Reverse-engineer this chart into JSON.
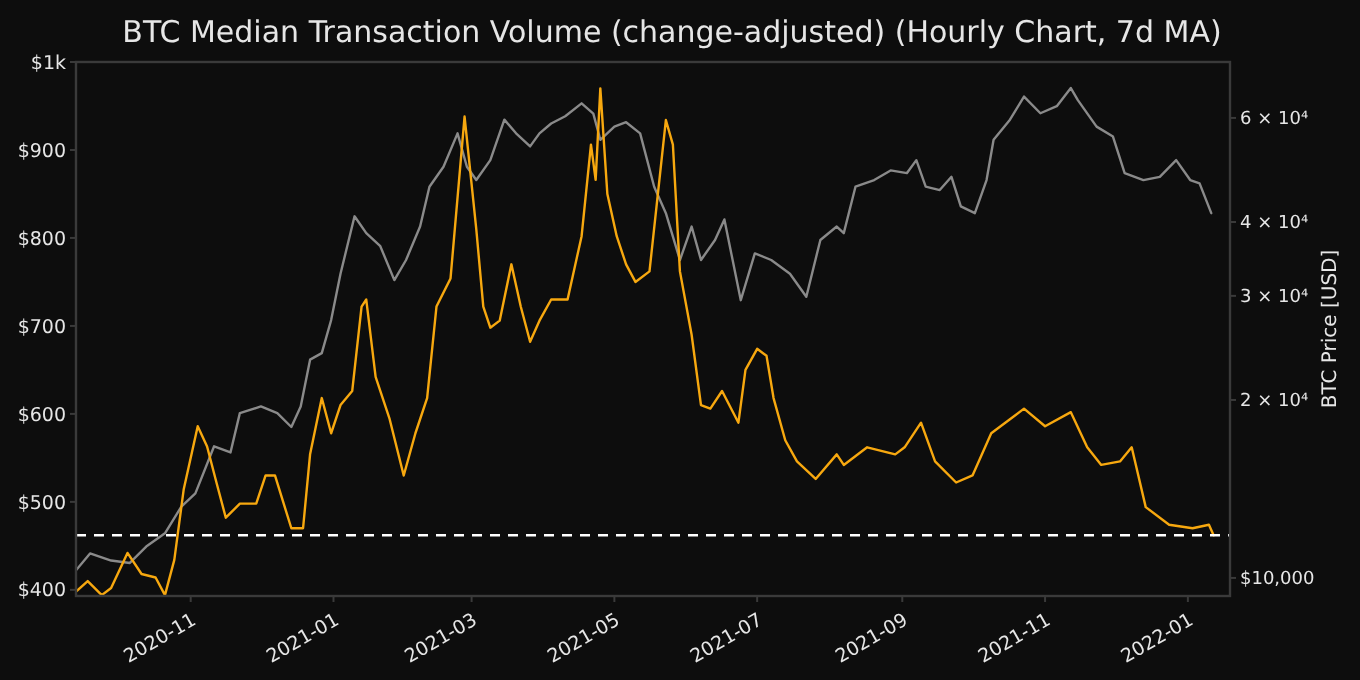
{
  "chart_data": {
    "type": "line",
    "title": "BTC Median Transaction Volume (change-adjusted) (Hourly Chart, 7d MA)",
    "y2label": "BTC Price [USD]",
    "xlim": [
      "2020-09-13",
      "2022-01-19"
    ],
    "xticks": [
      {
        "value": "2020-11-01",
        "label": "2020-11"
      },
      {
        "value": "2021-01-01",
        "label": "2021-01"
      },
      {
        "value": "2021-03-01",
        "label": "2021-03"
      },
      {
        "value": "2021-05-01",
        "label": "2021-05"
      },
      {
        "value": "2021-07-01",
        "label": "2021-07"
      },
      {
        "value": "2021-09-01",
        "label": "2021-09"
      },
      {
        "value": "2021-11-01",
        "label": "2021-11"
      },
      {
        "value": "2022-01-01",
        "label": "2022-01"
      }
    ],
    "ylim": [
      393,
      1000
    ],
    "yticks": [
      {
        "value": 400,
        "label": "$400"
      },
      {
        "value": 500,
        "label": "$500"
      },
      {
        "value": 600,
        "label": "$600"
      },
      {
        "value": 700,
        "label": "$700"
      },
      {
        "value": 800,
        "label": "$800"
      },
      {
        "value": 900,
        "label": "$900"
      },
      {
        "value": 1000,
        "label": "$1k"
      }
    ],
    "y2lim": [
      9320,
      74600
    ],
    "log": "y2",
    "y2ticks": [
      {
        "value": 10000,
        "label": "$10,000"
      },
      {
        "value": 20000,
        "label": "2 × 10⁴"
      },
      {
        "value": 30000,
        "label": "3 × 10⁴"
      },
      {
        "value": 40000,
        "label": "4 × 10⁴"
      },
      {
        "value": 60000,
        "label": "6 × 10⁴"
      }
    ],
    "grid": false,
    "line_style": "solid",
    "ref_lines": [
      {
        "axis": "y",
        "value": 462,
        "color": "#ffffff",
        "line_style": "dashed"
      }
    ],
    "series": [
      {
        "axis": "y2",
        "color": "#8a8a8a",
        "x": [
          "2020-09-13",
          "2020-09-19",
          "2020-09-28",
          "2020-10-06",
          "2020-10-13",
          "2020-10-21",
          "2020-10-28",
          "2020-11-03",
          "2020-11-11",
          "2020-11-18",
          "2020-11-22",
          "2020-12-01",
          "2020-12-08",
          "2020-12-14",
          "2020-12-18",
          "2020-12-22",
          "2020-12-27",
          "2020-12-31",
          "2021-01-04",
          "2021-01-10",
          "2021-01-15",
          "2021-01-21",
          "2021-01-27",
          "2021-02-01",
          "2021-02-07",
          "2021-02-11",
          "2021-02-17",
          "2021-02-23",
          "2021-02-27",
          "2021-03-03",
          "2021-03-09",
          "2021-03-15",
          "2021-03-20",
          "2021-03-26",
          "2021-03-30",
          "2021-04-04",
          "2021-04-10",
          "2021-04-17",
          "2021-04-22",
          "2021-04-25",
          "2021-05-01",
          "2021-05-06",
          "2021-05-12",
          "2021-05-18",
          "2021-05-23",
          "2021-05-29",
          "2021-06-03",
          "2021-06-07",
          "2021-06-13",
          "2021-06-17",
          "2021-06-24",
          "2021-06-30",
          "2021-07-07",
          "2021-07-15",
          "2021-07-22",
          "2021-07-28",
          "2021-08-04",
          "2021-08-07",
          "2021-08-12",
          "2021-08-20",
          "2021-08-27",
          "2021-09-03",
          "2021-09-07",
          "2021-09-11",
          "2021-09-17",
          "2021-09-22",
          "2021-09-26",
          "2021-10-02",
          "2021-10-07",
          "2021-10-10",
          "2021-10-17",
          "2021-10-23",
          "2021-10-30",
          "2021-11-06",
          "2021-11-12",
          "2021-11-15",
          "2021-11-23",
          "2021-11-30",
          "2021-12-05",
          "2021-12-13",
          "2021-12-20",
          "2021-12-27",
          "2022-01-02",
          "2022-01-06",
          "2022-01-11"
        ],
        "values": [
          10300,
          11000,
          10700,
          10600,
          11300,
          11900,
          13200,
          13900,
          16700,
          16300,
          19000,
          19500,
          19000,
          18000,
          19500,
          23400,
          24000,
          27300,
          32700,
          40900,
          38300,
          36400,
          31900,
          34500,
          39300,
          45900,
          49600,
          56500,
          49600,
          47100,
          50900,
          59600,
          56500,
          53700,
          56500,
          58700,
          60400,
          63500,
          61000,
          55100,
          58000,
          59000,
          56500,
          45900,
          41400,
          34500,
          39300,
          34500,
          37300,
          40400,
          29500,
          35400,
          34500,
          32700,
          29900,
          37300,
          39300,
          38300,
          45900,
          47100,
          48900,
          48400,
          50900,
          45900,
          45300,
          47700,
          42500,
          41400,
          47100,
          55100,
          59600,
          65200,
          61100,
          62800,
          67400,
          64300,
          58000,
          55800,
          48400,
          47100,
          47700,
          50900,
          47100,
          46500,
          41400
        ]
      },
      {
        "color": "#f7a80f",
        "x": [
          "2020-09-13",
          "2020-09-18",
          "2020-09-24",
          "2020-09-28",
          "2020-10-05",
          "2020-10-11",
          "2020-10-17",
          "2020-10-21",
          "2020-10-25",
          "2020-10-29",
          "2020-11-04",
          "2020-11-08",
          "2020-11-12",
          "2020-11-16",
          "2020-11-22",
          "2020-11-29",
          "2020-12-03",
          "2020-12-07",
          "2020-12-14",
          "2020-12-19",
          "2020-12-22",
          "2020-12-27",
          "2020-12-31",
          "2021-01-04",
          "2021-01-09",
          "2021-01-13",
          "2021-01-15",
          "2021-01-19",
          "2021-01-25",
          "2021-01-31",
          "2021-02-05",
          "2021-02-10",
          "2021-02-14",
          "2021-02-20",
          "2021-02-26",
          "2021-03-03",
          "2021-03-06",
          "2021-03-09",
          "2021-03-13",
          "2021-03-18",
          "2021-03-22",
          "2021-03-26",
          "2021-03-30",
          "2021-04-04",
          "2021-04-11",
          "2021-04-17",
          "2021-04-21",
          "2021-04-23",
          "2021-04-25",
          "2021-04-28",
          "2021-05-02",
          "2021-05-06",
          "2021-05-10",
          "2021-05-16",
          "2021-05-23",
          "2021-05-26",
          "2021-05-29",
          "2021-06-03",
          "2021-06-07",
          "2021-06-11",
          "2021-06-16",
          "2021-06-23",
          "2021-06-26",
          "2021-07-01",
          "2021-07-05",
          "2021-07-08",
          "2021-07-13",
          "2021-07-18",
          "2021-07-26",
          "2021-08-04",
          "2021-08-07",
          "2021-08-17",
          "2021-08-29",
          "2021-09-02",
          "2021-09-09",
          "2021-09-15",
          "2021-09-24",
          "2021-10-01",
          "2021-10-09",
          "2021-10-17",
          "2021-10-23",
          "2021-11-01",
          "2021-11-12",
          "2021-11-19",
          "2021-11-25",
          "2021-12-03",
          "2021-12-08",
          "2021-12-14",
          "2021-12-24",
          "2022-01-03",
          "2022-01-10",
          "2022-01-12"
        ],
        "values": [
          398,
          410,
          394,
          402,
          442,
          418,
          414,
          394,
          434,
          514,
          586,
          563,
          522,
          482,
          498,
          498,
          530,
          530,
          470,
          470,
          554,
          618,
          578,
          610,
          626,
          722,
          730,
          642,
          594,
          530,
          578,
          618,
          722,
          754,
          938,
          810,
          722,
          698,
          706,
          770,
          722,
          682,
          706,
          730,
          730,
          802,
          906,
          866,
          970,
          850,
          802,
          770,
          750,
          762,
          934,
          906,
          762,
          690,
          610,
          606,
          626,
          590,
          650,
          674,
          666,
          618,
          570,
          546,
          526,
          554,
          542,
          562,
          554,
          562,
          590,
          546,
          522,
          530,
          578,
          594,
          606,
          586,
          602,
          562,
          542,
          546,
          562,
          494,
          474,
          470,
          474,
          462
        ]
      }
    ]
  }
}
